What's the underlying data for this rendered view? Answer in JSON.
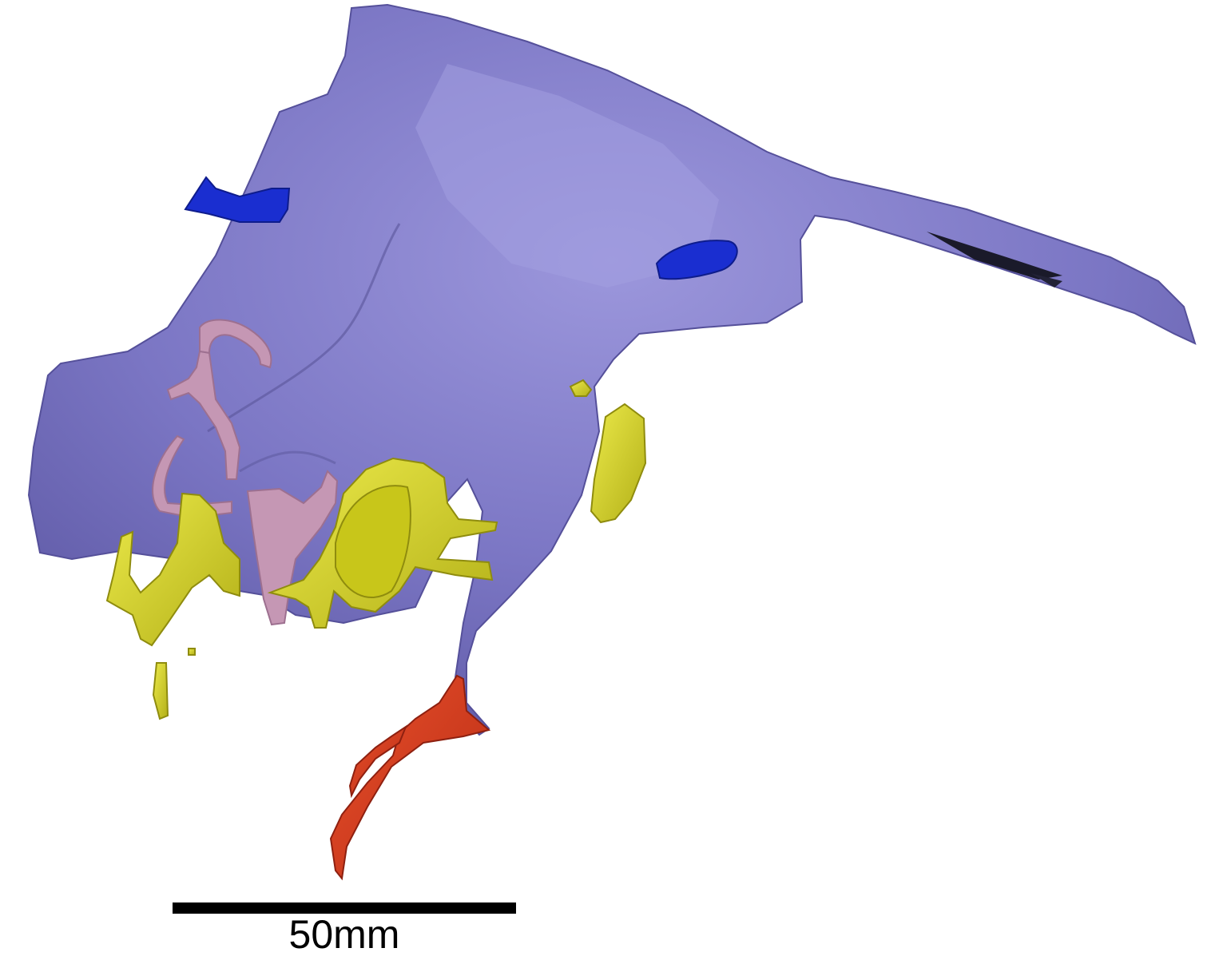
{
  "scale_bar": {
    "label": "50mm"
  },
  "colors": {
    "background": "#ffffff",
    "bone_main": "#7b76c4",
    "bone_highlight": "#9c97dc",
    "bone_shadow": "#4e4a8e",
    "blue_structure": "#1a2ed0",
    "pink_structure": "#c597b4",
    "yellow_structure": "#d6d41f",
    "red_structure": "#d93a1e",
    "scale_bar": "#000000"
  },
  "regions": [
    {
      "name": "main-bone-mass",
      "color": "bone_main"
    },
    {
      "name": "blue-marker-left",
      "color": "blue_structure"
    },
    {
      "name": "blue-marker-right",
      "color": "blue_structure"
    },
    {
      "name": "pink-canal-structure",
      "color": "pink_structure"
    },
    {
      "name": "yellow-ossicles",
      "color": "yellow_structure"
    },
    {
      "name": "red-hook-process",
      "color": "red_structure"
    }
  ]
}
